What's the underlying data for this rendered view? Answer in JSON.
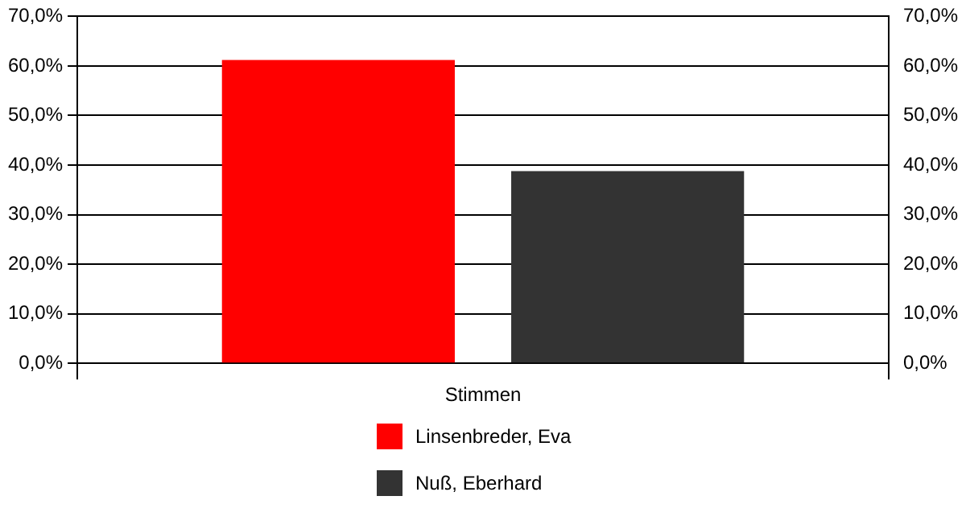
{
  "chart_data": {
    "type": "bar",
    "categories": [
      "Stimmen"
    ],
    "series": [
      {
        "name": "Linsenbreder, Eva",
        "color": "#ff0000",
        "values": [
          61.2
        ]
      },
      {
        "name": "Nuß, Eberhard",
        "color": "#333333",
        "values": [
          38.8
        ]
      }
    ],
    "ylim": [
      0,
      70
    ],
    "yticks": [
      {
        "value": 0,
        "label": "0,0%"
      },
      {
        "value": 10,
        "label": "10,0%"
      },
      {
        "value": 20,
        "label": "20,0%"
      },
      {
        "value": 30,
        "label": "30,0%"
      },
      {
        "value": 40,
        "label": "40,0%"
      },
      {
        "value": 50,
        "label": "50,0%"
      },
      {
        "value": 60,
        "label": "60,0%"
      },
      {
        "value": 70,
        "label": "70,0%"
      }
    ],
    "grid": "y",
    "legend": "bottom"
  }
}
